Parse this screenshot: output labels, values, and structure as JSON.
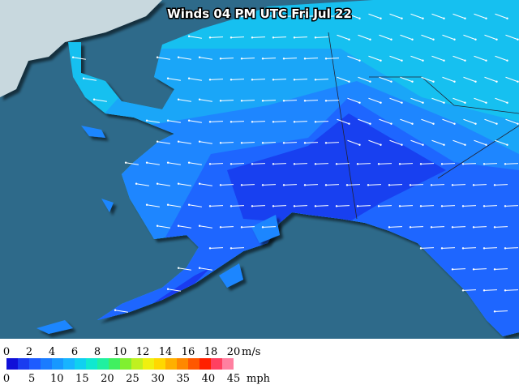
{
  "title": "Winds 04 PM UTC Fri Jul 22",
  "legend": {
    "colors": [
      "#1010d8",
      "#1a3cf0",
      "#1e5cff",
      "#1a7cff",
      "#1898ff",
      "#18b4ff",
      "#10d0f0",
      "#10e8d0",
      "#20f0a0",
      "#40f060",
      "#80f030",
      "#c0f020",
      "#f0f010",
      "#ffd800",
      "#ffb000",
      "#ff8800",
      "#ff5800",
      "#ff2000",
      "#ff4060",
      "#ff80a0"
    ],
    "ms": {
      "unit": "m/s",
      "ticks": [
        0,
        2,
        4,
        6,
        8,
        10,
        12,
        14,
        16,
        18,
        20
      ]
    },
    "mph": {
      "unit": "mph",
      "ticks": [
        0,
        5,
        10,
        15,
        20,
        25,
        30,
        35,
        40,
        45
      ]
    }
  }
}
